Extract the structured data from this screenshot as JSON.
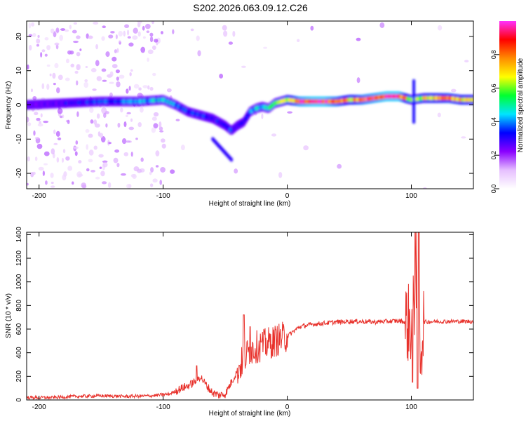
{
  "title": "S202.2026.063.09.12.C26",
  "colors": {
    "snr_line": "#e8312b",
    "axis": "#000000"
  },
  "chart_data": [
    {
      "type": "heatmap",
      "name": "spectrogram",
      "xlabel": "Height of straight line (km)",
      "ylabel": "Frequency (Hz)",
      "xlim": [
        -210,
        150
      ],
      "ylim": [
        -24.5,
        24.5
      ],
      "xticks": [
        -200,
        -100,
        0,
        100
      ],
      "yticks": [
        -20,
        -10,
        0,
        10,
        20
      ],
      "grid": false,
      "colorbar": {
        "label": "Normalized spectral amplitude",
        "range": [
          0,
          1
        ],
        "ticks": [
          "0.0",
          "0.2",
          "0.4",
          "0.6",
          "0.8"
        ],
        "tick_values": [
          0.0,
          0.2,
          0.4,
          0.6,
          0.8
        ],
        "colormap": [
          "#ffffff",
          "#e6bfff",
          "#8a00ff",
          "#0000ff",
          "#00e5ff",
          "#00ff30",
          "#ffff00",
          "#ff8c00",
          "#ff0000",
          "#ff30ff"
        ]
      },
      "ridge": {
        "x": [
          -210,
          -180,
          -150,
          -120,
          -100,
          -90,
          -80,
          -70,
          -60,
          -50,
          -45,
          -40,
          -35,
          -30,
          -25,
          -20,
          -15,
          -10,
          -5,
          0,
          10,
          20,
          30,
          40,
          50,
          60,
          70,
          80,
          90,
          100,
          110,
          120,
          130,
          140,
          150
        ],
        "y": [
          0,
          0.5,
          1,
          1,
          1.5,
          0,
          -2,
          -3,
          -4,
          -6,
          -7.5,
          -6,
          -5,
          -2,
          -1,
          -0.5,
          -1,
          0.5,
          1,
          1.5,
          1,
          1,
          1,
          1,
          1.5,
          1.5,
          2,
          2.5,
          2.5,
          1.5,
          2,
          2,
          2,
          1.5,
          1.5
        ],
        "amplitude": [
          0.25,
          0.3,
          0.35,
          0.4,
          0.45,
          0.4,
          0.35,
          0.35,
          0.3,
          0.35,
          0.35,
          0.3,
          0.3,
          0.4,
          0.45,
          0.45,
          0.5,
          0.55,
          0.6,
          0.65,
          0.9,
          0.95,
          0.95,
          0.85,
          0.7,
          0.85,
          0.9,
          0.95,
          0.95,
          0.6,
          0.7,
          0.75,
          0.8,
          0.75,
          0.7
        ]
      }
    },
    {
      "type": "line",
      "name": "snr",
      "xlabel": "Height of straight line (km)",
      "ylabel": "SNR (10 * v/v)",
      "xlim": [
        -210,
        150
      ],
      "ylim": [
        0,
        1420
      ],
      "xticks": [
        -200,
        -100,
        0,
        100
      ],
      "yticks": [
        0,
        200,
        400,
        600,
        800,
        1000,
        1200,
        1400
      ],
      "grid": false,
      "series": [
        {
          "name": "SNR",
          "x": [
            -210,
            -190,
            -170,
            -150,
            -130,
            -110,
            -95,
            -85,
            -80,
            -75,
            -70,
            -65,
            -60,
            -55,
            -50,
            -45,
            -40,
            -35,
            -30,
            -25,
            -20,
            -15,
            -10,
            -5,
            0,
            10,
            20,
            30,
            40,
            50,
            60,
            70,
            80,
            90,
            95,
            100,
            103,
            105,
            107,
            110,
            120,
            130,
            140,
            150
          ],
          "y": [
            20,
            20,
            30,
            35,
            30,
            35,
            50,
            100,
            120,
            150,
            200,
            120,
            60,
            40,
            50,
            150,
            250,
            350,
            420,
            450,
            460,
            480,
            500,
            520,
            540,
            620,
            640,
            650,
            660,
            665,
            665,
            660,
            665,
            670,
            660,
            640,
            800,
            1420,
            400,
            660,
            665,
            665,
            665,
            665
          ],
          "spikes": [
            {
              "x": -73,
              "y": 290
            },
            {
              "x": -35,
              "y": 720
            },
            {
              "x": -30,
              "y": 620
            },
            {
              "x": -21,
              "y": 490
            },
            {
              "x": 103,
              "y": 1420
            },
            {
              "x": 106,
              "y": 1420
            },
            {
              "x": 105,
              "y": 100
            },
            {
              "x": 101,
              "y": 150
            }
          ]
        }
      ]
    }
  ]
}
